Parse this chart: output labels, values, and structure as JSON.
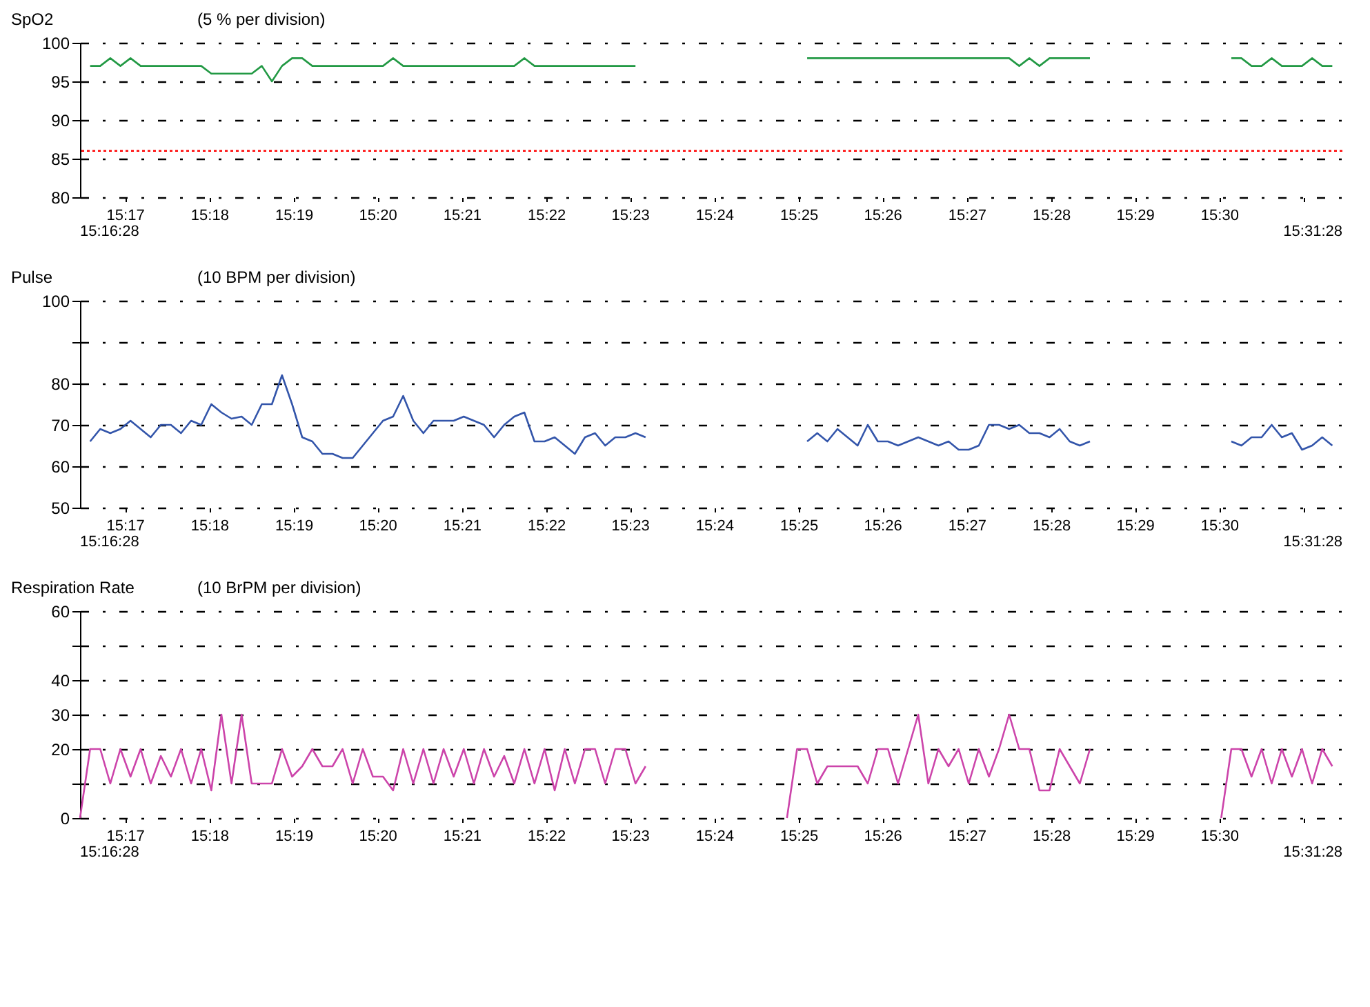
{
  "chart_data": [
    {
      "type": "line",
      "title": "SpO2",
      "annotations": [
        "(5 % per division)",
        "15:16:28",
        "15:31:28"
      ],
      "x": [
        15.2764,
        15.2784,
        15.2804,
        15.2824,
        15.2844,
        15.2864,
        15.2884,
        15.2904,
        15.2924,
        15.2944,
        15.2964,
        15.2984,
        15.3004,
        15.3024,
        15.3044,
        15.3064,
        15.3084,
        15.3104,
        15.3124,
        15.3144,
        15.3164,
        15.3184,
        15.3204,
        15.3224,
        15.3244,
        15.3264,
        15.3284,
        15.3304,
        15.3324,
        15.3344,
        15.3364,
        15.3384,
        15.3404,
        15.3424,
        15.3444,
        15.3464,
        15.3484,
        15.3504,
        15.3524,
        15.3544,
        15.3564,
        15.3584,
        15.3604,
        15.3624,
        15.3644,
        15.3664,
        15.3684,
        15.3704,
        15.3724,
        15.3744,
        15.3764,
        15.3784,
        15.3804,
        15.3824,
        15.3844,
        15.3864,
        15.3884,
        15.3904,
        15.3924,
        15.3944,
        15.3964,
        15.3984,
        15.4004,
        15.4024,
        15.4044,
        15.4064,
        15.4084,
        15.4104,
        15.4124,
        15.4144,
        15.4164,
        15.4184,
        15.4204,
        15.4224,
        15.4244,
        15.4264,
        15.4284,
        15.4304,
        15.4324,
        15.4344,
        15.4364,
        15.4384,
        15.4404,
        15.4424,
        15.4444,
        15.4464,
        15.4484,
        15.4504,
        15.4524,
        15.4544,
        15.4564,
        15.4584,
        15.4604,
        15.4624,
        15.4644,
        15.4664,
        15.4684,
        15.4704,
        15.4724,
        15.4744,
        15.4764,
        15.4784,
        15.4804,
        15.4824,
        15.4844,
        15.4864,
        15.4884,
        15.4904,
        15.4924,
        15.4944,
        15.4964,
        15.4984,
        15.5004,
        15.5024,
        15.5044,
        15.5064,
        15.5084,
        15.5104,
        15.5124,
        15.5144,
        15.5164,
        15.5184,
        15.5204,
        15.5224
      ],
      "series": [
        {
          "color": "#229944",
          "values": [
            97,
            97,
            98,
            97,
            98,
            97,
            97,
            97,
            97,
            97,
            97,
            97,
            96,
            96,
            96,
            96,
            96,
            97,
            95,
            97,
            98,
            98,
            97,
            97,
            97,
            97,
            97,
            97,
            97,
            97,
            98,
            97,
            97,
            97,
            97,
            97,
            97,
            97,
            97,
            97,
            97,
            97,
            97,
            98,
            97,
            97,
            97,
            97,
            97,
            97,
            97,
            97,
            97,
            97,
            97,
            null,
            null,
            null,
            null,
            null,
            null,
            null,
            null,
            null,
            null,
            null,
            null,
            null,
            null,
            null,
            null,
            98,
            98,
            98,
            98,
            98,
            98,
            98,
            98,
            98,
            98,
            98,
            98,
            98,
            98,
            98,
            98,
            98,
            98,
            98,
            98,
            98,
            97,
            98,
            97,
            98,
            98,
            98,
            98,
            98,
            null,
            null,
            null,
            null,
            null,
            null,
            null,
            null,
            null,
            null,
            null,
            null,
            null,
            98,
            98,
            97,
            97,
            98,
            97,
            97,
            97,
            98,
            97,
            97
          ]
        }
      ],
      "xlim": [
        15.2744,
        15.5244
      ],
      "xticks": [
        {
          "value": 15.2833,
          "label": "15:17"
        },
        {
          "value": 15.3,
          "label": "15:18"
        },
        {
          "value": 15.3167,
          "label": "15:19"
        },
        {
          "value": 15.3333,
          "label": "15:20"
        },
        {
          "value": 15.35,
          "label": "15:21"
        },
        {
          "value": 15.3667,
          "label": "15:22"
        },
        {
          "value": 15.3833,
          "label": "15:23"
        },
        {
          "value": 15.4,
          "label": "15:24"
        },
        {
          "value": 15.4167,
          "label": "15:25"
        },
        {
          "value": 15.4333,
          "label": "15:26"
        },
        {
          "value": 15.45,
          "label": "15:27"
        },
        {
          "value": 15.4667,
          "label": "15:28"
        },
        {
          "value": 15.4833,
          "label": "15:29"
        },
        {
          "value": 15.5,
          "label": "15:30"
        },
        {
          "value": 15.5167,
          "label": null
        }
      ],
      "ylim": [
        80,
        100
      ],
      "yticks": [
        80,
        85,
        90,
        95,
        100
      ],
      "grid": "y",
      "ref_lines": [
        {
          "axis": "y",
          "value": 86,
          "color": "#ff0000",
          "line_style": "dotted"
        }
      ]
    },
    {
      "type": "line",
      "title": "Pulse",
      "annotations": [
        "(10 BPM per division)",
        "15:16:28",
        "15:31:28"
      ],
      "x": [
        15.2764,
        15.2784,
        15.2804,
        15.2824,
        15.2844,
        15.2864,
        15.2884,
        15.2904,
        15.2924,
        15.2944,
        15.2964,
        15.2984,
        15.3004,
        15.3024,
        15.3044,
        15.3064,
        15.3084,
        15.3104,
        15.3124,
        15.3144,
        15.3164,
        15.3184,
        15.3204,
        15.3224,
        15.3244,
        15.3264,
        15.3284,
        15.3304,
        15.3324,
        15.3344,
        15.3364,
        15.3384,
        15.3404,
        15.3424,
        15.3444,
        15.3464,
        15.3484,
        15.3504,
        15.3524,
        15.3544,
        15.3564,
        15.3584,
        15.3604,
        15.3624,
        15.3644,
        15.3664,
        15.3684,
        15.3704,
        15.3724,
        15.3744,
        15.3764,
        15.3784,
        15.3804,
        15.3824,
        15.3844,
        15.3864,
        15.3884,
        15.3904,
        15.3924,
        15.3944,
        15.3964,
        15.3984,
        15.4004,
        15.4024,
        15.4044,
        15.4064,
        15.4084,
        15.4104,
        15.4124,
        15.4144,
        15.4164,
        15.4184,
        15.4204,
        15.4224,
        15.4244,
        15.4264,
        15.4284,
        15.4304,
        15.4324,
        15.4344,
        15.4364,
        15.4384,
        15.4404,
        15.4424,
        15.4444,
        15.4464,
        15.4484,
        15.4504,
        15.4524,
        15.4544,
        15.4564,
        15.4584,
        15.4604,
        15.4624,
        15.4644,
        15.4664,
        15.4684,
        15.4704,
        15.4724,
        15.4744,
        15.4764,
        15.4784,
        15.4804,
        15.4824,
        15.4844,
        15.4864,
        15.4884,
        15.4904,
        15.4924,
        15.4944,
        15.4964,
        15.4984,
        15.5004,
        15.5024,
        15.5044,
        15.5064,
        15.5084,
        15.5104,
        15.5124,
        15.5144,
        15.5164,
        15.5184,
        15.5204,
        15.5224
      ],
      "series": [
        {
          "color": "#3355aa",
          "values": [
            66,
            69,
            68,
            69,
            71,
            69,
            67,
            70,
            70,
            68,
            71,
            70,
            75,
            73,
            71.5,
            72,
            70,
            75,
            75,
            82,
            75,
            67,
            66,
            63,
            63,
            62,
            62,
            65,
            68,
            71,
            72,
            77,
            71,
            68,
            71,
            71,
            71,
            72,
            71,
            70,
            67,
            70,
            72,
            73,
            66,
            66,
            67,
            65,
            63,
            67,
            68,
            65,
            67,
            67,
            68,
            67,
            null,
            null,
            null,
            null,
            null,
            null,
            null,
            null,
            null,
            null,
            null,
            null,
            null,
            null,
            null,
            66,
            68,
            66,
            69,
            67,
            65,
            70,
            66,
            66,
            65,
            66,
            67,
            66,
            65,
            66,
            64,
            64,
            65,
            70,
            70,
            69,
            70,
            68,
            68,
            67,
            69,
            66,
            65,
            66,
            null,
            null,
            null,
            null,
            null,
            null,
            null,
            null,
            null,
            null,
            null,
            null,
            null,
            66,
            65,
            67,
            67,
            70,
            67,
            68,
            64,
            65,
            67,
            65
          ]
        }
      ],
      "xlim": [
        15.2744,
        15.5244
      ],
      "xticks": [
        {
          "value": 15.2833,
          "label": "15:17"
        },
        {
          "value": 15.3,
          "label": "15:18"
        },
        {
          "value": 15.3167,
          "label": "15:19"
        },
        {
          "value": 15.3333,
          "label": "15:20"
        },
        {
          "value": 15.35,
          "label": "15:21"
        },
        {
          "value": 15.3667,
          "label": "15:22"
        },
        {
          "value": 15.3833,
          "label": "15:23"
        },
        {
          "value": 15.4,
          "label": "15:24"
        },
        {
          "value": 15.4167,
          "label": "15:25"
        },
        {
          "value": 15.4333,
          "label": "15:26"
        },
        {
          "value": 15.45,
          "label": "15:27"
        },
        {
          "value": 15.4667,
          "label": "15:28"
        },
        {
          "value": 15.4833,
          "label": "15:29"
        },
        {
          "value": 15.5,
          "label": "15:30"
        },
        {
          "value": 15.5167,
          "label": null
        }
      ],
      "ylim": [
        50,
        100
      ],
      "yticks": [
        50,
        60,
        70,
        80,
        {
          "value": 90,
          "label": null
        },
        100
      ],
      "grid": "y"
    },
    {
      "type": "line",
      "title": "Respiration Rate",
      "annotations": [
        "(10 BrPM per division)",
        "15:16:28",
        "15:31:28"
      ],
      "x": [
        15.2744,
        15.2764,
        15.2784,
        15.2804,
        15.2824,
        15.2844,
        15.2864,
        15.2884,
        15.2904,
        15.2924,
        15.2944,
        15.2964,
        15.2984,
        15.3004,
        15.3024,
        15.3044,
        15.3064,
        15.3084,
        15.3104,
        15.3124,
        15.3144,
        15.3164,
        15.3184,
        15.3204,
        15.3224,
        15.3244,
        15.3264,
        15.3284,
        15.3304,
        15.3324,
        15.3344,
        15.3364,
        15.3384,
        15.3404,
        15.3424,
        15.3444,
        15.3464,
        15.3484,
        15.3504,
        15.3524,
        15.3544,
        15.3564,
        15.3584,
        15.3604,
        15.3624,
        15.3644,
        15.3664,
        15.3684,
        15.3704,
        15.3724,
        15.3744,
        15.3764,
        15.3784,
        15.3804,
        15.3824,
        15.3844,
        15.3864,
        15.3884,
        15.3904,
        15.3924,
        15.3944,
        15.3964,
        15.3984,
        15.4004,
        15.4024,
        15.4044,
        15.4064,
        15.4084,
        15.4104,
        15.4124,
        15.4144,
        15.4164,
        15.4184,
        15.4204,
        15.4224,
        15.4244,
        15.4264,
        15.4284,
        15.4304,
        15.4324,
        15.4344,
        15.4364,
        15.4384,
        15.4404,
        15.4424,
        15.4444,
        15.4464,
        15.4484,
        15.4504,
        15.4524,
        15.4544,
        15.4564,
        15.4584,
        15.4604,
        15.4624,
        15.4644,
        15.4664,
        15.4684,
        15.4704,
        15.4724,
        15.4744,
        15.4764,
        15.4784,
        15.4804,
        15.4824,
        15.4844,
        15.4864,
        15.4884,
        15.4904,
        15.4924,
        15.4944,
        15.4964,
        15.4984,
        15.5004,
        15.5024,
        15.5044,
        15.5064,
        15.5084,
        15.5104,
        15.5124,
        15.5144,
        15.5164,
        15.5184,
        15.5204,
        15.5224
      ],
      "series": [
        {
          "color": "#cc44aa",
          "values": [
            0,
            20,
            20,
            10,
            20,
            12,
            20,
            10,
            18,
            12,
            20,
            10,
            20,
            8,
            30,
            10,
            30,
            10,
            10,
            10,
            20,
            12,
            15,
            20,
            15,
            15,
            20,
            10,
            20,
            12,
            12,
            8,
            20,
            10,
            20,
            10,
            20,
            12,
            20,
            10,
            20,
            12,
            18,
            10,
            20,
            10,
            20,
            8,
            20,
            10,
            20,
            20,
            10,
            20,
            20,
            10,
            15,
            null,
            null,
            null,
            null,
            null,
            null,
            null,
            null,
            null,
            null,
            null,
            null,
            null,
            0,
            20,
            20,
            10,
            15,
            15,
            15,
            15,
            10,
            20,
            20,
            10,
            20,
            30,
            10,
            20,
            15,
            20,
            10,
            20,
            12,
            20,
            30,
            20,
            20,
            8,
            8,
            20,
            15,
            10,
            20,
            null,
            null,
            null,
            null,
            null,
            null,
            null,
            null,
            null,
            null,
            null,
            null,
            0,
            20,
            20,
            12,
            20,
            10,
            20,
            12,
            20,
            10,
            20,
            15
          ]
        }
      ],
      "xlim": [
        15.2744,
        15.5244
      ],
      "xticks": [
        {
          "value": 15.2833,
          "label": "15:17"
        },
        {
          "value": 15.3,
          "label": "15:18"
        },
        {
          "value": 15.3167,
          "label": "15:19"
        },
        {
          "value": 15.3333,
          "label": "15:20"
        },
        {
          "value": 15.35,
          "label": "15:21"
        },
        {
          "value": 15.3667,
          "label": "15:22"
        },
        {
          "value": 15.3833,
          "label": "15:23"
        },
        {
          "value": 15.4,
          "label": "15:24"
        },
        {
          "value": 15.4167,
          "label": "15:25"
        },
        {
          "value": 15.4333,
          "label": "15:26"
        },
        {
          "value": 15.45,
          "label": "15:27"
        },
        {
          "value": 15.4667,
          "label": "15:28"
        },
        {
          "value": 15.4833,
          "label": "15:29"
        },
        {
          "value": 15.5,
          "label": "15:30"
        },
        {
          "value": 15.5167,
          "label": null
        }
      ],
      "ylim": [
        0,
        60
      ],
      "yticks": [
        0,
        {
          "value": 10,
          "label": null
        },
        20,
        30,
        40,
        {
          "value": 50,
          "label": null
        },
        60
      ],
      "grid": "y"
    }
  ]
}
